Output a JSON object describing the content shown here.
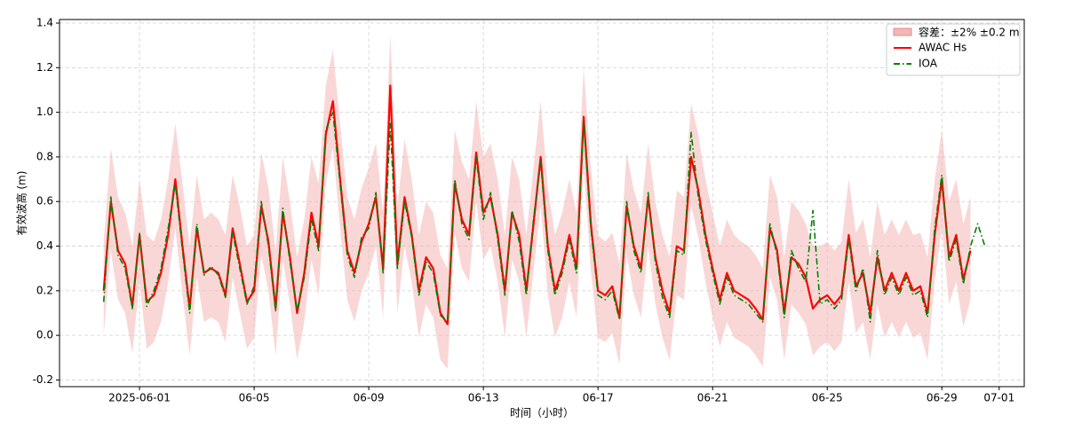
{
  "chart_data": {
    "type": "line",
    "xlabel": "时间（小时）",
    "ylabel": "有效波高 (m)",
    "x": [
      "2025-05-30T18:00",
      "2025-05-31T00:00",
      "2025-05-31T06:00",
      "2025-05-31T12:00",
      "2025-05-31T18:00",
      "2025-06-01T00:00",
      "2025-06-01T06:00",
      "2025-06-01T12:00",
      "2025-06-01T18:00",
      "2025-06-02T00:00",
      "2025-06-02T06:00",
      "2025-06-02T12:00",
      "2025-06-02T18:00",
      "2025-06-03T00:00",
      "2025-06-03T06:00",
      "2025-06-03T12:00",
      "2025-06-03T18:00",
      "2025-06-04T00:00",
      "2025-06-04T06:00",
      "2025-06-04T12:00",
      "2025-06-04T18:00",
      "2025-06-05T00:00",
      "2025-06-05T06:00",
      "2025-06-05T12:00",
      "2025-06-05T18:00",
      "2025-06-06T00:00",
      "2025-06-06T06:00",
      "2025-06-06T12:00",
      "2025-06-06T18:00",
      "2025-06-07T00:00",
      "2025-06-07T06:00",
      "2025-06-07T12:00",
      "2025-06-07T18:00",
      "2025-06-08T00:00",
      "2025-06-08T06:00",
      "2025-06-08T12:00",
      "2025-06-08T18:00",
      "2025-06-09T00:00",
      "2025-06-09T06:00",
      "2025-06-09T12:00",
      "2025-06-09T18:00",
      "2025-06-10T00:00",
      "2025-06-10T06:00",
      "2025-06-10T12:00",
      "2025-06-10T18:00",
      "2025-06-11T00:00",
      "2025-06-11T06:00",
      "2025-06-11T12:00",
      "2025-06-11T18:00",
      "2025-06-12T00:00",
      "2025-06-12T06:00",
      "2025-06-12T12:00",
      "2025-06-12T18:00",
      "2025-06-13T00:00",
      "2025-06-13T06:00",
      "2025-06-13T12:00",
      "2025-06-13T18:00",
      "2025-06-14T00:00",
      "2025-06-14T06:00",
      "2025-06-14T12:00",
      "2025-06-14T18:00",
      "2025-06-15T00:00",
      "2025-06-15T06:00",
      "2025-06-15T12:00",
      "2025-06-15T18:00",
      "2025-06-16T00:00",
      "2025-06-16T06:00",
      "2025-06-16T12:00",
      "2025-06-16T18:00",
      "2025-06-17T00:00",
      "2025-06-17T06:00",
      "2025-06-17T12:00",
      "2025-06-17T18:00",
      "2025-06-18T00:00",
      "2025-06-18T06:00",
      "2025-06-18T12:00",
      "2025-06-18T18:00",
      "2025-06-19T00:00",
      "2025-06-19T06:00",
      "2025-06-19T12:00",
      "2025-06-19T18:00",
      "2025-06-20T00:00",
      "2025-06-20T06:00",
      "2025-06-20T12:00",
      "2025-06-20T18:00",
      "2025-06-21T00:00",
      "2025-06-21T06:00",
      "2025-06-21T12:00",
      "2025-06-21T18:00",
      "2025-06-22T00:00",
      "2025-06-22T06:00",
      "2025-06-22T12:00",
      "2025-06-22T18:00",
      "2025-06-23T00:00",
      "2025-06-23T06:00",
      "2025-06-23T12:00",
      "2025-06-23T18:00",
      "2025-06-24T00:00",
      "2025-06-24T06:00",
      "2025-06-24T12:00",
      "2025-06-24T18:00",
      "2025-06-25T00:00",
      "2025-06-25T06:00",
      "2025-06-25T12:00",
      "2025-06-25T18:00",
      "2025-06-26T00:00",
      "2025-06-26T06:00",
      "2025-06-26T12:00",
      "2025-06-26T18:00",
      "2025-06-27T00:00",
      "2025-06-27T06:00",
      "2025-06-27T12:00",
      "2025-06-27T18:00",
      "2025-06-28T00:00",
      "2025-06-28T06:00",
      "2025-06-28T12:00",
      "2025-06-28T18:00",
      "2025-06-29T00:00",
      "2025-06-29T06:00",
      "2025-06-29T12:00",
      "2025-06-29T18:00",
      "2025-06-30T00:00",
      "2025-06-30T06:00",
      "2025-06-30T12:00"
    ],
    "band": {
      "name": "容差：±2% ±0.2 m",
      "color": "#f4b6b6",
      "upper": [
        0.42,
        0.84,
        0.62,
        0.55,
        0.4,
        0.7,
        0.45,
        0.42,
        0.52,
        0.7,
        0.95,
        0.68,
        0.4,
        0.72,
        0.52,
        0.55,
        0.52,
        0.45,
        0.72,
        0.58,
        0.4,
        0.45,
        0.82,
        0.66,
        0.38,
        0.8,
        0.6,
        0.35,
        0.52,
        0.8,
        0.68,
        1.12,
        1.28,
        0.95,
        0.62,
        0.52,
        0.66,
        0.75,
        0.86,
        0.55,
        1.35,
        0.58,
        0.88,
        0.7,
        0.45,
        0.6,
        0.55,
        0.36,
        0.3,
        0.92,
        0.78,
        0.7,
        1.05,
        0.8,
        0.86,
        0.7,
        0.45,
        0.8,
        0.7,
        0.45,
        0.75,
        1.05,
        0.66,
        0.45,
        0.55,
        0.7,
        0.55,
        1.2,
        0.75,
        0.45,
        0.42,
        0.46,
        0.32,
        0.82,
        0.65,
        0.55,
        0.86,
        0.6,
        0.45,
        0.35,
        0.65,
        0.62,
        1.04,
        0.9,
        0.7,
        0.55,
        0.4,
        0.52,
        0.45,
        0.42,
        0.4,
        0.36,
        0.3,
        0.72,
        0.62,
        0.35,
        0.6,
        0.56,
        0.5,
        0.4,
        0.4,
        0.42,
        0.38,
        0.42,
        0.7,
        0.46,
        0.52,
        0.35,
        0.6,
        0.45,
        0.52,
        0.45,
        0.52,
        0.45,
        0.46,
        0.35,
        0.7,
        0.92,
        0.6,
        0.7,
        0.5,
        0.62,
        null,
        null
      ],
      "lower": [
        0.0,
        0.38,
        0.16,
        0.1,
        -0.08,
        0.24,
        -0.06,
        -0.03,
        0.06,
        0.24,
        0.48,
        0.18,
        -0.09,
        0.26,
        0.06,
        0.08,
        0.06,
        -0.03,
        0.26,
        0.1,
        -0.06,
        -0.01,
        0.36,
        0.2,
        -0.09,
        0.34,
        0.14,
        -0.11,
        0.06,
        0.34,
        0.18,
        0.68,
        0.84,
        0.48,
        0.16,
        0.06,
        0.2,
        0.28,
        0.4,
        0.08,
        0.9,
        0.1,
        0.4,
        0.24,
        -0.01,
        0.14,
        0.08,
        -0.11,
        -0.15,
        0.46,
        0.3,
        0.24,
        0.6,
        0.34,
        0.4,
        0.24,
        -0.01,
        0.34,
        0.24,
        -0.01,
        0.29,
        0.58,
        0.18,
        -0.01,
        0.08,
        0.24,
        0.08,
        0.76,
        0.29,
        -0.01,
        -0.03,
        0.01,
        -0.13,
        0.36,
        0.18,
        0.08,
        0.4,
        0.14,
        -0.01,
        -0.11,
        0.18,
        0.16,
        0.58,
        0.44,
        0.24,
        0.08,
        -0.05,
        0.06,
        -0.01,
        -0.03,
        -0.05,
        -0.09,
        -0.14,
        0.26,
        0.16,
        -0.11,
        0.14,
        0.1,
        0.05,
        -0.09,
        -0.05,
        -0.03,
        -0.07,
        -0.03,
        0.24,
        0.01,
        0.06,
        -0.11,
        0.14,
        -0.01,
        0.06,
        -0.01,
        0.06,
        -0.01,
        0.01,
        -0.11,
        0.24,
        0.48,
        0.14,
        0.24,
        0.04,
        0.16,
        null,
        null
      ]
    },
    "series": [
      {
        "name": "AWAC Hs",
        "color": "#ff0000",
        "dash": "solid",
        "values": [
          0.2,
          0.6,
          0.38,
          0.32,
          0.13,
          0.45,
          0.15,
          0.18,
          0.28,
          0.45,
          0.7,
          0.4,
          0.12,
          0.48,
          0.28,
          0.3,
          0.28,
          0.18,
          0.48,
          0.32,
          0.15,
          0.2,
          0.58,
          0.42,
          0.12,
          0.55,
          0.35,
          0.1,
          0.28,
          0.55,
          0.4,
          0.9,
          1.05,
          0.7,
          0.38,
          0.28,
          0.42,
          0.5,
          0.62,
          0.3,
          1.12,
          0.32,
          0.62,
          0.45,
          0.2,
          0.35,
          0.3,
          0.1,
          0.05,
          0.68,
          0.52,
          0.45,
          0.82,
          0.55,
          0.62,
          0.45,
          0.2,
          0.55,
          0.45,
          0.2,
          0.5,
          0.8,
          0.4,
          0.2,
          0.3,
          0.45,
          0.3,
          0.98,
          0.5,
          0.2,
          0.18,
          0.22,
          0.08,
          0.58,
          0.4,
          0.3,
          0.62,
          0.35,
          0.2,
          0.1,
          0.4,
          0.38,
          0.8,
          0.65,
          0.45,
          0.3,
          0.16,
          0.28,
          0.2,
          0.18,
          0.16,
          0.12,
          0.07,
          0.48,
          0.38,
          0.1,
          0.35,
          0.32,
          0.26,
          0.12,
          0.16,
          0.18,
          0.14,
          0.18,
          0.45,
          0.22,
          0.28,
          0.1,
          0.35,
          0.2,
          0.28,
          0.2,
          0.28,
          0.2,
          0.22,
          0.1,
          0.45,
          0.7,
          0.35,
          0.45,
          0.25,
          0.38,
          null,
          null
        ]
      },
      {
        "name": "IOA",
        "color": "#008000",
        "dash": "dashdot",
        "values": [
          0.15,
          0.62,
          0.36,
          0.3,
          0.12,
          0.46,
          0.13,
          0.2,
          0.3,
          0.48,
          0.68,
          0.38,
          0.1,
          0.5,
          0.27,
          0.31,
          0.27,
          0.17,
          0.46,
          0.3,
          0.14,
          0.22,
          0.6,
          0.4,
          0.11,
          0.57,
          0.33,
          0.11,
          0.26,
          0.52,
          0.38,
          0.92,
          1.0,
          0.68,
          0.36,
          0.26,
          0.44,
          0.48,
          0.64,
          0.28,
          0.95,
          0.3,
          0.6,
          0.44,
          0.18,
          0.33,
          0.28,
          0.09,
          0.06,
          0.7,
          0.5,
          0.43,
          0.8,
          0.52,
          0.64,
          0.43,
          0.18,
          0.56,
          0.42,
          0.18,
          0.52,
          0.78,
          0.38,
          0.18,
          0.28,
          0.43,
          0.28,
          0.96,
          0.48,
          0.18,
          0.16,
          0.2,
          0.07,
          0.6,
          0.38,
          0.28,
          0.64,
          0.33,
          0.17,
          0.08,
          0.38,
          0.36,
          0.91,
          0.62,
          0.43,
          0.28,
          0.14,
          0.26,
          0.18,
          0.16,
          0.14,
          0.1,
          0.06,
          0.5,
          0.36,
          0.08,
          0.38,
          0.3,
          0.24,
          0.56,
          0.14,
          0.16,
          0.12,
          0.16,
          0.43,
          0.2,
          0.3,
          0.06,
          0.38,
          0.18,
          0.26,
          0.18,
          0.26,
          0.18,
          0.2,
          0.08,
          0.48,
          0.72,
          0.33,
          0.43,
          0.23,
          0.4,
          0.5,
          0.4
        ]
      }
    ],
    "xlim": [
      "2025-05-29T05:00",
      "2025-07-01T21:00"
    ],
    "xticks": [
      {
        "value": "2025-06-01",
        "label": "2025-06-01"
      },
      {
        "value": "2025-06-05",
        "label": "06-05"
      },
      {
        "value": "2025-06-09",
        "label": "06-09"
      },
      {
        "value": "2025-06-13",
        "label": "06-13"
      },
      {
        "value": "2025-06-17",
        "label": "06-17"
      },
      {
        "value": "2025-06-21",
        "label": "06-21"
      },
      {
        "value": "2025-06-25",
        "label": "06-25"
      },
      {
        "value": "2025-06-29",
        "label": "06-29"
      },
      {
        "value": "2025-07-01",
        "label": "07-01"
      }
    ],
    "ylim": [
      -0.23,
      1.416
    ],
    "yticks": [
      -0.2,
      {
        "value": 0,
        "label": "0.0"
      },
      0.2,
      0.4,
      0.6,
      0.8,
      {
        "value": 1,
        "label": "1.0"
      },
      1.2,
      1.4
    ],
    "grid": true,
    "legend": "upper right"
  }
}
